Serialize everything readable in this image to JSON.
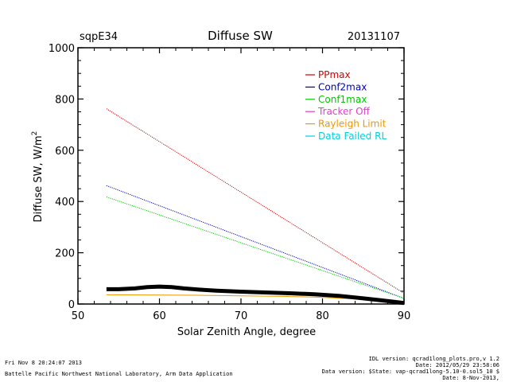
{
  "chart_data": {
    "type": "line",
    "header_left": "sqpE34",
    "title": "Diffuse SW",
    "header_right": "20131107",
    "xlabel": "Solar Zenith Angle, degree",
    "ylabel_main": "Diffuse SW, W/m",
    "ylabel_sup": "2",
    "xlim": [
      50,
      90
    ],
    "ylim": [
      0,
      1000
    ],
    "xticks": [
      50,
      60,
      70,
      80,
      90
    ],
    "yticks": [
      0,
      200,
      400,
      600,
      800,
      1000
    ],
    "legend_position": "top-right",
    "series": [
      {
        "name": "PPmax",
        "color": "#d40000",
        "style": "dotted",
        "x": [
          53.5,
          90
        ],
        "y": [
          762,
          42
        ]
      },
      {
        "name": "Conf2max",
        "color": "#0000b4",
        "style": "dotted",
        "x": [
          53.5,
          90
        ],
        "y": [
          462,
          22
        ]
      },
      {
        "name": "Conf1max",
        "color": "#00c800",
        "style": "dotted",
        "x": [
          53.5,
          90
        ],
        "y": [
          418,
          22
        ]
      },
      {
        "name": "Tracker Off",
        "color": "#e040c8",
        "style": "solid",
        "x": [],
        "y": []
      },
      {
        "name": "Rayleigh Limit",
        "color": "#f09600",
        "style": "solid",
        "x": [
          53.5,
          60,
          65,
          70,
          75,
          80,
          85,
          88,
          90
        ],
        "y": [
          36,
          35,
          34,
          32,
          30,
          26,
          18,
          8,
          2
        ]
      },
      {
        "name": "Data Failed RL",
        "color": "#00d0e0",
        "style": "solid",
        "x": [],
        "y": []
      }
    ],
    "measured": {
      "name": "Diffuse SW",
      "color": "#000000",
      "x": [
        53.5,
        55,
        57,
        58.5,
        60,
        61.5,
        63,
        65,
        67,
        70,
        73,
        76,
        79,
        82,
        85,
        87,
        89,
        90
      ],
      "y": [
        58,
        58,
        61,
        66,
        68,
        66,
        61,
        56,
        52,
        48,
        45,
        42,
        38,
        32,
        22,
        15,
        8,
        4
      ]
    }
  },
  "footer": {
    "left_line1": "Fri Nov  8 20:24:07 2013",
    "left_line2": "Battelle Pacific Northwest National Laboratory, Arm Data Application",
    "right_line1": "IDL version: qcrad1long_plots.pro,v 1.2",
    "right_line2": "Date: 2012/05/29 23:58:06",
    "right_line3": "Data version: $State: vap-qcrad1long-5.10-0.sol5_10 $",
    "right_line4": "Date: 8-Nov-2013,"
  }
}
